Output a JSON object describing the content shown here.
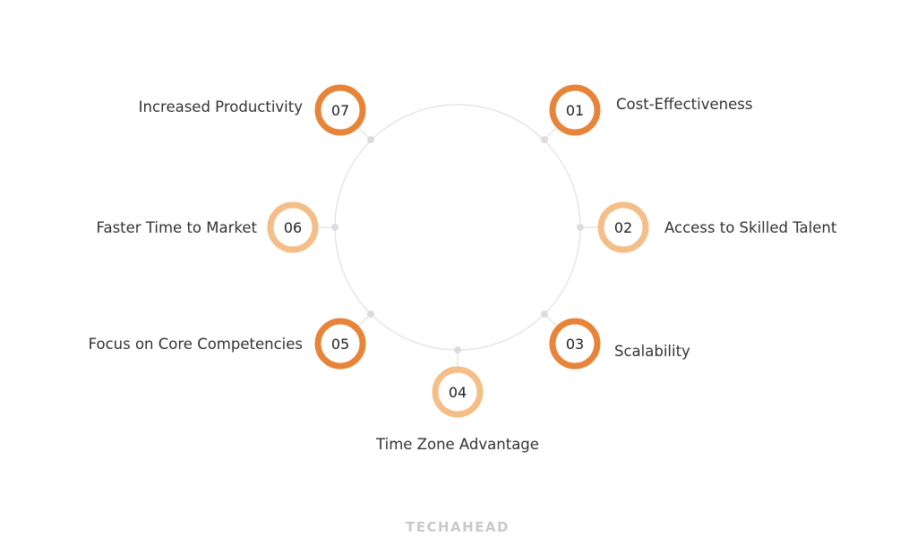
{
  "colors": {
    "dark_orange": "#E8843A",
    "light_orange": "#F5BE88",
    "circle": "#e6e6e6",
    "dot": "#dcdcdc",
    "text": "#333333"
  },
  "items": [
    {
      "number": "01",
      "label": "Cost-Effectiveness",
      "tone": "dark"
    },
    {
      "number": "02",
      "label": "Access to Skilled Talent",
      "tone": "light"
    },
    {
      "number": "03",
      "label": "Scalability",
      "tone": "dark"
    },
    {
      "number": "04",
      "label": "Time Zone Advantage",
      "tone": "light"
    },
    {
      "number": "05",
      "label": "Focus on Core Competencies",
      "tone": "dark"
    },
    {
      "number": "06",
      "label": "Faster Time to Market",
      "tone": "light"
    },
    {
      "number": "07",
      "label": "Increased Productivity",
      "tone": "dark"
    }
  ],
  "brand": "TECHAHEAD"
}
